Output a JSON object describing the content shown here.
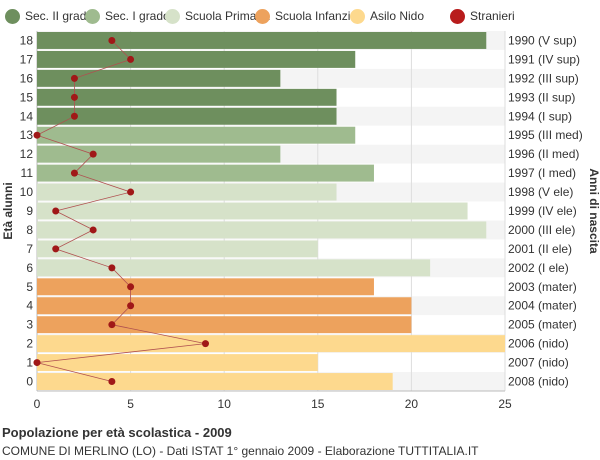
{
  "legend": [
    {
      "label": "Sec. II grado",
      "color": "#6e8f5e"
    },
    {
      "label": "Sec. I grado",
      "color": "#9fbb8f"
    },
    {
      "label": "Scuola Primaria",
      "color": "#d6e2c9"
    },
    {
      "label": "Scuola Infanzia",
      "color": "#eda25d"
    },
    {
      "label": "Asilo Nido",
      "color": "#fdd98e"
    },
    {
      "label": "Stranieri",
      "color": "#b81c1c"
    }
  ],
  "footer": {
    "title": "Popolazione per età scolastica - 2009",
    "subtitle": "COMUNE DI MERLINO (LO) - Dati ISTAT 1° gennaio 2009 - Elaborazione TUTTITALIA.IT"
  },
  "chart_data": {
    "type": "bar",
    "orientation": "horizontal",
    "ylabel": "Età alunni",
    "ylabel_right": "Anni di nascita",
    "xlim": [
      0,
      25
    ],
    "x_ticks": [
      0,
      5,
      10,
      15,
      20,
      25
    ],
    "grid": true,
    "legend_position": "top",
    "categories": [
      "18",
      "17",
      "16",
      "15",
      "14",
      "13",
      "12",
      "11",
      "10",
      "9",
      "8",
      "7",
      "6",
      "5",
      "4",
      "3",
      "2",
      "1",
      "0"
    ],
    "birth_years": [
      "1990 (V sup)",
      "1991 (IV sup)",
      "1992 (III sup)",
      "1993 (II sup)",
      "1994 (I sup)",
      "1995 (III med)",
      "1996 (II med)",
      "1997 (I med)",
      "1998 (V ele)",
      "1999 (IV ele)",
      "2000 (III ele)",
      "2001 (II ele)",
      "2002 (I ele)",
      "2003 (mater)",
      "2004 (mater)",
      "2005 (mater)",
      "2006 (nido)",
      "2007 (nido)",
      "2008 (nido)"
    ],
    "values": [
      24,
      17,
      13,
      16,
      16,
      17,
      13,
      18,
      16,
      23,
      24,
      15,
      21,
      18,
      20,
      20,
      25,
      15,
      19
    ],
    "school_levels": [
      "Sec. II grado",
      "Sec. II grado",
      "Sec. II grado",
      "Sec. II grado",
      "Sec. II grado",
      "Sec. I grado",
      "Sec. I grado",
      "Sec. I grado",
      "Scuola Primaria",
      "Scuola Primaria",
      "Scuola Primaria",
      "Scuola Primaria",
      "Scuola Primaria",
      "Scuola Infanzia",
      "Scuola Infanzia",
      "Scuola Infanzia",
      "Asilo Nido",
      "Asilo Nido",
      "Asilo Nido"
    ],
    "series": [
      {
        "name": "Stranieri",
        "values": [
          4,
          5,
          2,
          2,
          2,
          0,
          3,
          2,
          5,
          1,
          3,
          1,
          4,
          5,
          5,
          4,
          9,
          0,
          4
        ]
      }
    ]
  }
}
